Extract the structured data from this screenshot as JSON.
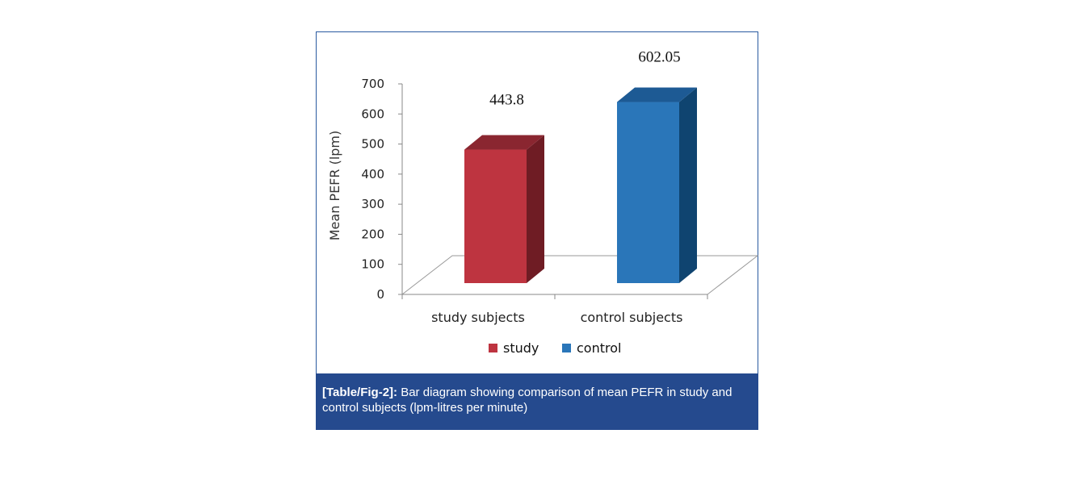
{
  "chart_data": {
    "type": "bar",
    "categories": [
      "study subjects",
      "control subjects"
    ],
    "values": [
      443.8,
      602.05
    ],
    "data_labels": [
      "443.8",
      "602.05"
    ],
    "ylabel": "Mean PEFR (lpm)",
    "xlabel": "",
    "ylim": [
      0,
      700
    ],
    "yticks": [
      0,
      100,
      200,
      300,
      400,
      500,
      600,
      700
    ],
    "legend": [
      {
        "name": "study",
        "color": "#be3440"
      },
      {
        "name": "control",
        "color": "#2a76b9"
      }
    ],
    "legend_position": "bottom",
    "grid": false,
    "style": "3d-column"
  },
  "caption": {
    "label": "[Table/Fig-2]:",
    "text": " Bar diagram showing comparison of mean PEFR in study and control subjects (lpm-litres per minute)"
  },
  "colors": {
    "study_front": "#be3440",
    "study_top": "#8a2630",
    "study_side": "#6f1c24",
    "control_front": "#2a76b9",
    "control_top": "#1d5a94",
    "control_side": "#0f4470",
    "caption_bg": "#254a8e"
  }
}
